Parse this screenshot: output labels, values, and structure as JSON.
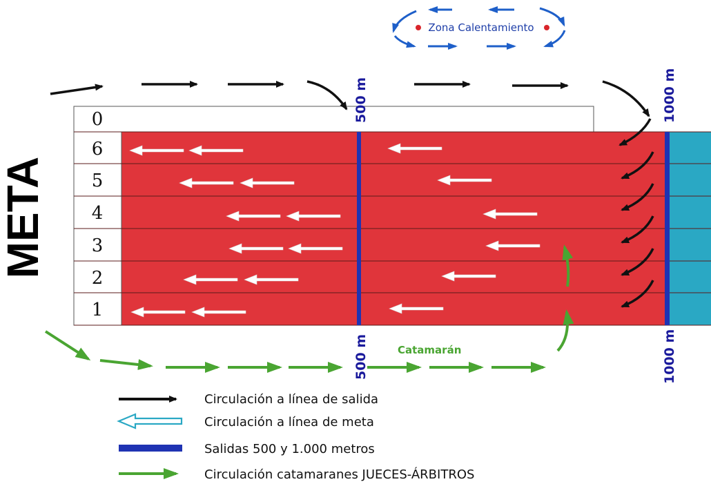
{
  "finish_label": "META",
  "warmup_zone_label": "Zona Calentamiento",
  "lane_numbers": [
    "0",
    "6",
    "5",
    "4",
    "3",
    "2",
    "1"
  ],
  "marker_500_top": "500 m",
  "marker_1000_top": "1000 m",
  "marker_500_bottom": "500 m",
  "marker_1000_bottom": "1000 m",
  "catamaran_label": "Catamarán",
  "legend": [
    {
      "label": "Circulación a línea de salida",
      "icon": "black-arrow-icon"
    },
    {
      "label": "Circulación a línea de meta",
      "icon": "white-outline-arrow-icon"
    },
    {
      "label": "Salidas 500 y 1.000 metros",
      "icon": "blue-bar-icon"
    },
    {
      "label": "Circulación catamaranes JUECES-ÁRBITROS",
      "icon": "green-arrow-icon"
    }
  ],
  "colors": {
    "course": "#e0353b",
    "water": "#2aa8c4",
    "start_line": "#1f33b3",
    "marker_text": "#1a1a9c",
    "warmup": "#1e5fc9",
    "catamaran": "#4aa532",
    "dark_arrow": "#111111",
    "white_arrow": "#ffffff"
  }
}
